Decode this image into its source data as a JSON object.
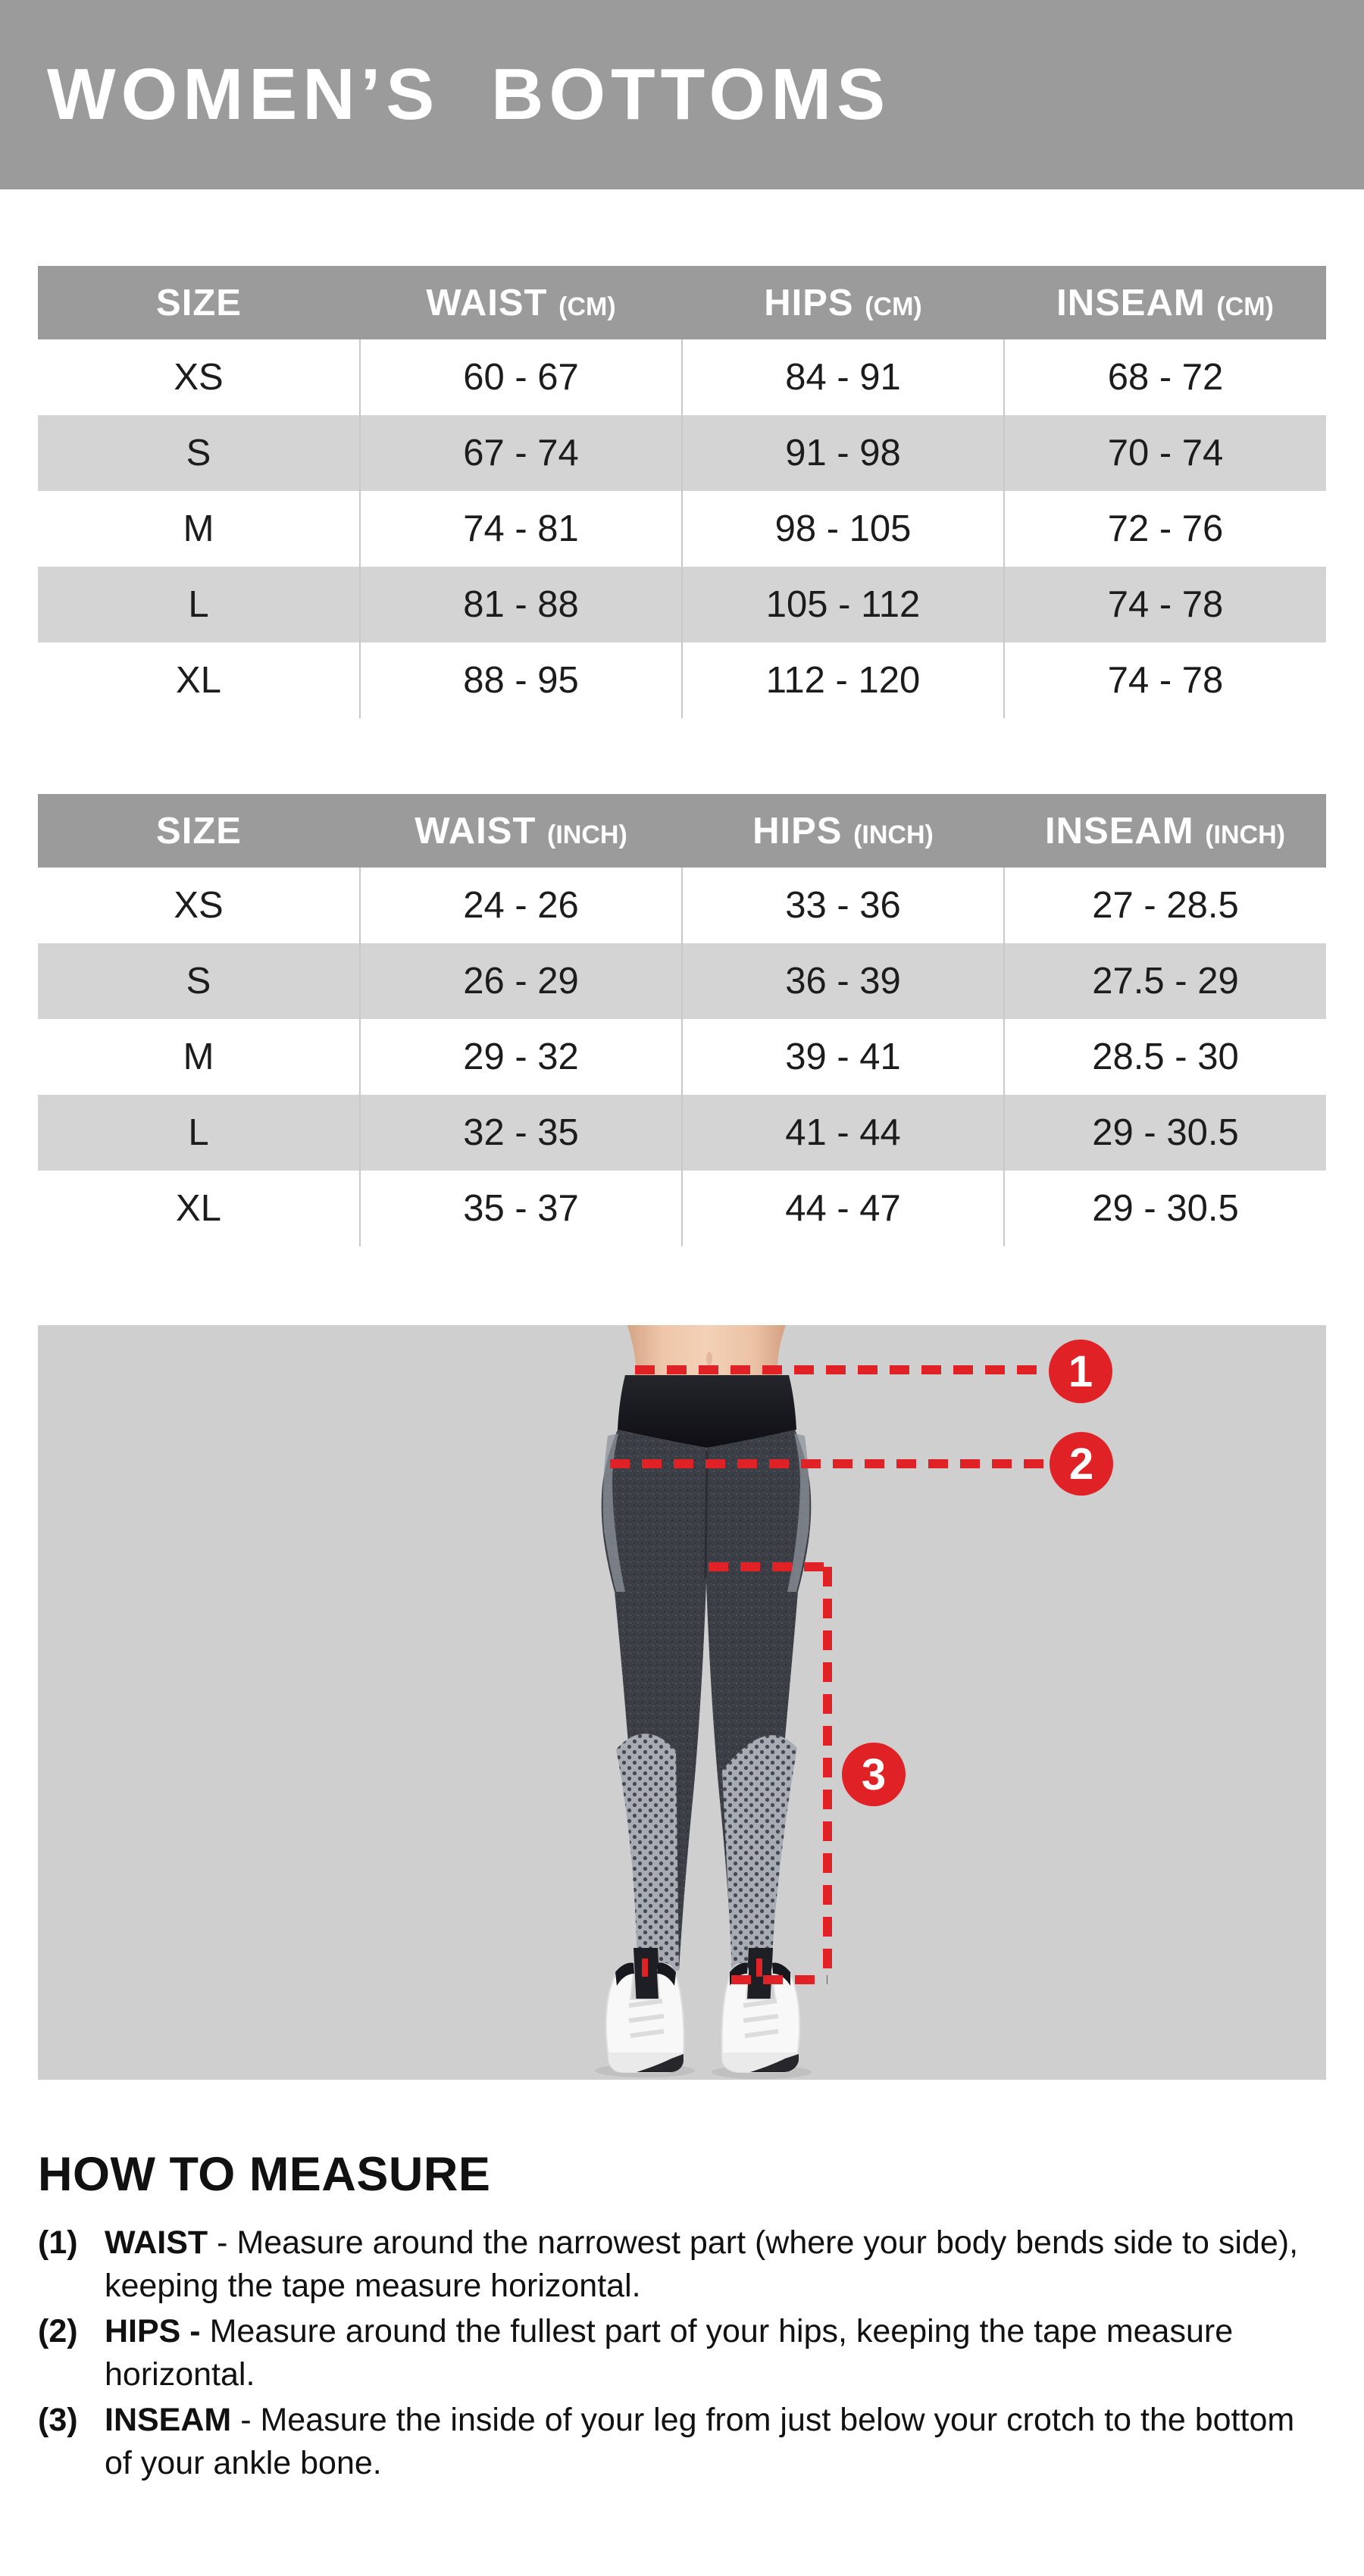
{
  "banner": {
    "title": "WOMEN’S BOTTOMS",
    "bg_color": "#9b9b9b",
    "text_color": "#ffffff"
  },
  "tables": [
    {
      "id": "cm",
      "headers": [
        {
          "label": "SIZE",
          "unit": ""
        },
        {
          "label": "WAIST",
          "unit": "(CM)"
        },
        {
          "label": "HIPS",
          "unit": "(CM)"
        },
        {
          "label": "INSEAM",
          "unit": "(CM)"
        }
      ],
      "rows": [
        {
          "size": "XS",
          "waist": "60 - 67",
          "hips": "84 - 91",
          "inseam": "68 - 72"
        },
        {
          "size": "S",
          "waist": "67 - 74",
          "hips": "91 - 98",
          "inseam": "70 - 74"
        },
        {
          "size": "M",
          "waist": "74 - 81",
          "hips": "98 - 105",
          "inseam": "72 - 76"
        },
        {
          "size": "L",
          "waist": "81 - 88",
          "hips": "105 - 112",
          "inseam": "74 - 78"
        },
        {
          "size": "XL",
          "waist": "88 - 95",
          "hips": "112 - 120",
          "inseam": "74 - 78"
        }
      ]
    },
    {
      "id": "inch",
      "headers": [
        {
          "label": "SIZE",
          "unit": ""
        },
        {
          "label": "WAIST",
          "unit": "(INCH)"
        },
        {
          "label": "HIPS",
          "unit": "(INCH)"
        },
        {
          "label": "INSEAM",
          "unit": "(INCH)"
        }
      ],
      "rows": [
        {
          "size": "XS",
          "waist": "24 - 26",
          "hips": "33 - 36",
          "inseam": "27 - 28.5"
        },
        {
          "size": "S",
          "waist": "26 - 29",
          "hips": "36 - 39",
          "inseam": "27.5 - 29"
        },
        {
          "size": "M",
          "waist": "29 - 32",
          "hips": "39 - 41",
          "inseam": "28.5 - 30"
        },
        {
          "size": "L",
          "waist": "32 - 35",
          "hips": "41 - 44",
          "inseam": "29 - 30.5"
        },
        {
          "size": "XL",
          "waist": "35 - 37",
          "hips": "44 - 47",
          "inseam": "29 - 30.5"
        }
      ]
    }
  ],
  "figure": {
    "background": "#cfcfcf",
    "accent_color": "#e02126",
    "badges": [
      {
        "label": "1"
      },
      {
        "label": "2"
      },
      {
        "label": "3"
      }
    ]
  },
  "how_to": {
    "title": "HOW TO MEASURE",
    "items": [
      {
        "num": "(1)",
        "label": "WAIST",
        "lines": [
          "- Measure around the narrowest part (where your body bends side to side),",
          "keeping the tape measure horizontal."
        ]
      },
      {
        "num": "(2)",
        "label": "HIPS -",
        "lines": [
          "Measure around the fullest part of your hips, keeping the tape measure",
          "horizontal."
        ]
      },
      {
        "num": "(3)",
        "label": "INSEAM",
        "lines": [
          "- Measure the inside of your leg from just below your crotch to the bottom",
          "of your ankle bone."
        ]
      }
    ]
  }
}
